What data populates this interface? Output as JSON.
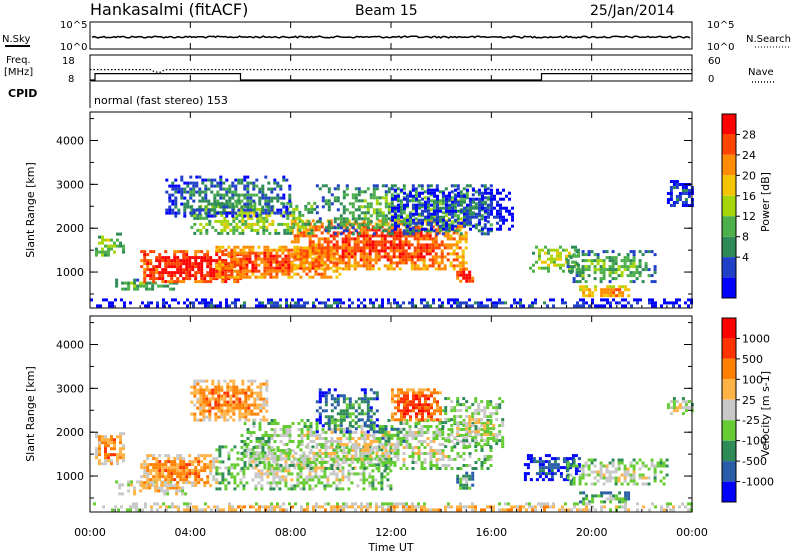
{
  "header": {
    "station": "Hankasalmi (fitACF)",
    "beam": "Beam 15",
    "date": "25/Jan/2014"
  },
  "top_panels": {
    "nsky_label": "N.Sky",
    "nsky_ticks": [
      "10^5",
      "10^0"
    ],
    "nsearch_label": "N.Search",
    "freq_label_line1": "Freq.",
    "freq_label_line2": "[MHz]",
    "freq_ticks": [
      "18",
      "8"
    ],
    "nave_ticks": [
      "60",
      "0"
    ],
    "nave_label": "Nave",
    "cpid_label": "CPID",
    "cpid_text": "normal (fast stereo) 153"
  },
  "chart_data": [
    {
      "type": "heatmap",
      "name": "power",
      "ylabel": "Slant Range [km]",
      "ylim": [
        180,
        4650
      ],
      "yticks": [
        "4000",
        "3000",
        "2000",
        "1000"
      ],
      "colorbar_label": "Power [dB]",
      "colorbar_ticks": [
        "28",
        "24",
        "20",
        "16",
        "12",
        "8",
        "4"
      ],
      "colors": [
        "#0000ff",
        "#2040c8",
        "#2e8b57",
        "#4daf4a",
        "#a6d608",
        "#f5c400",
        "#ff8c00",
        "#ff4500",
        "#ff0000"
      ],
      "regions": [
        {
          "t": [
            0.2,
            1.3
          ],
          "r": [
            1400,
            1900
          ],
          "level": 4
        },
        {
          "t": [
            1.0,
            3.5
          ],
          "r": [
            600,
            850
          ],
          "level": 3
        },
        {
          "t": [
            2.0,
            6.0
          ],
          "r": [
            800,
            1500
          ],
          "level": 8
        },
        {
          "t": [
            5.0,
            10.0
          ],
          "r": [
            900,
            1600
          ],
          "level": 7
        },
        {
          "t": [
            8.0,
            15.0
          ],
          "r": [
            1100,
            2200
          ],
          "level": 7
        },
        {
          "t": [
            4.0,
            9.0
          ],
          "r": [
            1900,
            2600
          ],
          "level": 4
        },
        {
          "t": [
            9.0,
            16.0
          ],
          "r": [
            1900,
            3000
          ],
          "level": 3
        },
        {
          "t": [
            3.0,
            8.0
          ],
          "r": [
            2300,
            3200
          ],
          "level": 2
        },
        {
          "t": [
            12.0,
            16.8
          ],
          "r": [
            2000,
            2900
          ],
          "level": 1
        },
        {
          "t": [
            14.6,
            15.2
          ],
          "r": [
            800,
            1100
          ],
          "level": 8
        },
        {
          "t": [
            17.5,
            19.5
          ],
          "r": [
            1000,
            1600
          ],
          "level": 4
        },
        {
          "t": [
            19.0,
            22.5
          ],
          "r": [
            800,
            1500
          ],
          "level": 3
        },
        {
          "t": [
            19.5,
            21.5
          ],
          "r": [
            450,
            700
          ],
          "level": 6
        },
        {
          "t": [
            23.0,
            24.0
          ],
          "r": [
            2500,
            3100
          ],
          "level": 1
        },
        {
          "t": [
            0.0,
            24.0
          ],
          "r": [
            200,
            400
          ],
          "level": 1
        }
      ]
    },
    {
      "type": "heatmap",
      "name": "velocity",
      "ylabel": "Slant Range [km]",
      "ylim": [
        180,
        4650
      ],
      "yticks": [
        "4000",
        "3000",
        "2000",
        "1000"
      ],
      "colorbar_label": "Velocity [m s-1]",
      "colorbar_ticks": [
        "1000",
        "500",
        "100",
        "25",
        "-25",
        "-100",
        "-500",
        "-1000"
      ],
      "colors": [
        "#0000ff",
        "#2a5da8",
        "#2e8b57",
        "#66cc33",
        "#c8c8c8",
        "#ffb347",
        "#ff8000",
        "#ff3300",
        "#ff0000"
      ],
      "regions": [
        {
          "t": [
            0.2,
            1.3
          ],
          "r": [
            1300,
            2000
          ],
          "level": 6
        },
        {
          "t": [
            1.0,
            4.0
          ],
          "r": [
            600,
            900
          ],
          "level": 5
        },
        {
          "t": [
            2.0,
            5.0
          ],
          "r": [
            800,
            1500
          ],
          "level": 6
        },
        {
          "t": [
            5.0,
            12.0
          ],
          "r": [
            700,
            1700
          ],
          "level": 4
        },
        {
          "t": [
            6.0,
            16.0
          ],
          "r": [
            1200,
            2300
          ],
          "level": 4
        },
        {
          "t": [
            14.0,
            16.5
          ],
          "r": [
            1700,
            2800
          ],
          "level": 4
        },
        {
          "t": [
            9.0,
            11.5
          ],
          "r": [
            2000,
            3000
          ],
          "level": 2
        },
        {
          "t": [
            11.5,
            12.5
          ],
          "r": [
            1800,
            2100
          ],
          "level": 3
        },
        {
          "t": [
            4.0,
            7.0
          ],
          "r": [
            2300,
            3200
          ],
          "level": 6
        },
        {
          "t": [
            12.0,
            14.0
          ],
          "r": [
            2300,
            3000
          ],
          "level": 7
        },
        {
          "t": [
            14.6,
            15.2
          ],
          "r": [
            700,
            1100
          ],
          "level": 3
        },
        {
          "t": [
            17.3,
            19.5
          ],
          "r": [
            900,
            1500
          ],
          "level": 1
        },
        {
          "t": [
            19.0,
            23.0
          ],
          "r": [
            800,
            1400
          ],
          "level": 4
        },
        {
          "t": [
            19.5,
            21.5
          ],
          "r": [
            400,
            650
          ],
          "level": 3
        },
        {
          "t": [
            23.0,
            24.0
          ],
          "r": [
            2400,
            2800
          ],
          "level": 4
        },
        {
          "t": [
            0.0,
            24.0
          ],
          "r": [
            200,
            400
          ],
          "level": 5
        }
      ]
    }
  ],
  "time_axis": {
    "label": "Time UT",
    "ticks": [
      "00:00",
      "04:00",
      "08:00",
      "12:00",
      "16:00",
      "20:00",
      "00:00"
    ]
  },
  "freq_series": {
    "t": [
      0,
      2.4,
      2.6,
      2.8,
      3.0,
      24
    ],
    "mhz": [
      14.5,
      14.5,
      13.0,
      12.8,
      14.5,
      14.5
    ]
  },
  "nave_series": {
    "t": [
      0,
      0.2,
      0.2,
      6.0,
      6.0,
      18.0,
      18.0,
      24.0
    ],
    "nave": [
      0,
      0,
      24,
      24,
      0,
      0,
      24,
      24
    ]
  }
}
